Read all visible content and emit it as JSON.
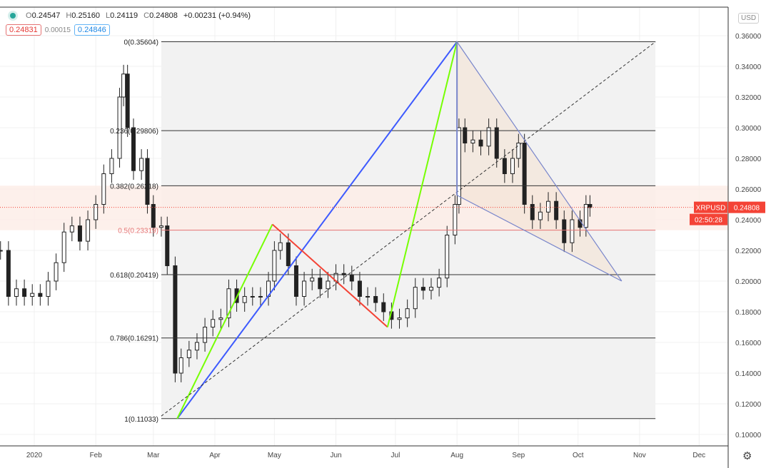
{
  "legend": {
    "open": "0.24547",
    "high": "0.25160",
    "low": "0.24119",
    "close": "0.24808",
    "change": "+0.00231 (+0.94%)",
    "o_label": "O",
    "h_label": "H",
    "l_label": "L",
    "c_label": "C"
  },
  "quote": {
    "sell": "0.24831",
    "spread": "0.00015",
    "buy": "0.24846"
  },
  "currency": "USD",
  "symbol": "XRPUSD",
  "last_price": "0.24808",
  "countdown": "02:50:28",
  "colors": {
    "up": "#ffffff",
    "down": "#222222",
    "fib": "#333333",
    "fib_mid": "#e57373",
    "blue": "#3d5afe",
    "green": "#76ff03",
    "red": "#f44336",
    "triangle": "#7986cb",
    "price_tag": "#f44336"
  },
  "chart_data": {
    "type": "candlestick",
    "y_axis": {
      "min": 0.1,
      "max": 0.36,
      "ticks": [
        "0.10000",
        "0.12000",
        "0.14000",
        "0.16000",
        "0.18000",
        "0.20000",
        "0.22000",
        "0.24000",
        "0.26000",
        "0.28000",
        "0.30000",
        "0.32000",
        "0.34000",
        "0.36000"
      ]
    },
    "x_axis": {
      "ticks": [
        {
          "label": "2020",
          "date": "2020-01-01"
        },
        {
          "label": "Feb",
          "date": "2020-02-01"
        },
        {
          "label": "Mar",
          "date": "2020-03-01"
        },
        {
          "label": "Apr",
          "date": "2020-04-01"
        },
        {
          "label": "May",
          "date": "2020-05-01"
        },
        {
          "label": "Jun",
          "date": "2020-06-01"
        },
        {
          "label": "Jul",
          "date": "2020-07-01"
        },
        {
          "label": "Aug",
          "date": "2020-08-01"
        },
        {
          "label": "Sep",
          "date": "2020-09-01"
        },
        {
          "label": "Oct",
          "date": "2020-10-01"
        },
        {
          "label": "Nov",
          "date": "2020-11-01"
        },
        {
          "label": "Dec",
          "date": "2020-12-01"
        }
      ]
    },
    "closes": [
      [
        "2019-12-15",
        0.22
      ],
      [
        "2019-12-19",
        0.19
      ],
      [
        "2019-12-23",
        0.195
      ],
      [
        "2019-12-27",
        0.19
      ],
      [
        "2019-12-31",
        0.192
      ],
      [
        "2020-01-04",
        0.19
      ],
      [
        "2020-01-08",
        0.2
      ],
      [
        "2020-01-12",
        0.212
      ],
      [
        "2020-01-16",
        0.232
      ],
      [
        "2020-01-20",
        0.236
      ],
      [
        "2020-01-24",
        0.226
      ],
      [
        "2020-01-28",
        0.24
      ],
      [
        "2020-02-01",
        0.25
      ],
      [
        "2020-02-05",
        0.27
      ],
      [
        "2020-02-09",
        0.28
      ],
      [
        "2020-02-13",
        0.32
      ],
      [
        "2020-02-15",
        0.335
      ],
      [
        "2020-02-17",
        0.3
      ],
      [
        "2020-02-20",
        0.272
      ],
      [
        "2020-02-24",
        0.28
      ],
      [
        "2020-02-27",
        0.25
      ],
      [
        "2020-03-01",
        0.235
      ],
      [
        "2020-03-05",
        0.236
      ],
      [
        "2020-03-08",
        0.21
      ],
      [
        "2020-03-12",
        0.14
      ],
      [
        "2020-03-15",
        0.15
      ],
      [
        "2020-03-19",
        0.155
      ],
      [
        "2020-03-23",
        0.16
      ],
      [
        "2020-03-27",
        0.17
      ],
      [
        "2020-03-31",
        0.175
      ],
      [
        "2020-04-04",
        0.176
      ],
      [
        "2020-04-08",
        0.195
      ],
      [
        "2020-04-12",
        0.186
      ],
      [
        "2020-04-16",
        0.19
      ],
      [
        "2020-04-20",
        0.19
      ],
      [
        "2020-04-24",
        0.19
      ],
      [
        "2020-04-28",
        0.2
      ],
      [
        "2020-05-01",
        0.22
      ],
      [
        "2020-05-04",
        0.225
      ],
      [
        "2020-05-08",
        0.21
      ],
      [
        "2020-05-12",
        0.19
      ],
      [
        "2020-05-16",
        0.2
      ],
      [
        "2020-05-20",
        0.202
      ],
      [
        "2020-05-24",
        0.195
      ],
      [
        "2020-05-28",
        0.2
      ],
      [
        "2020-06-01",
        0.205
      ],
      [
        "2020-06-05",
        0.204
      ],
      [
        "2020-06-09",
        0.2
      ],
      [
        "2020-06-13",
        0.19
      ],
      [
        "2020-06-17",
        0.19
      ],
      [
        "2020-06-21",
        0.186
      ],
      [
        "2020-06-25",
        0.18
      ],
      [
        "2020-06-29",
        0.175
      ],
      [
        "2020-07-03",
        0.176
      ],
      [
        "2020-07-07",
        0.182
      ],
      [
        "2020-07-11",
        0.196
      ],
      [
        "2020-07-15",
        0.194
      ],
      [
        "2020-07-19",
        0.196
      ],
      [
        "2020-07-23",
        0.202
      ],
      [
        "2020-07-27",
        0.23
      ],
      [
        "2020-07-31",
        0.25
      ],
      [
        "2020-08-02",
        0.3
      ],
      [
        "2020-08-05",
        0.29
      ],
      [
        "2020-08-09",
        0.292
      ],
      [
        "2020-08-13",
        0.288
      ],
      [
        "2020-08-17",
        0.3
      ],
      [
        "2020-08-21",
        0.28
      ],
      [
        "2020-08-25",
        0.27
      ],
      [
        "2020-08-29",
        0.28
      ],
      [
        "2020-09-01",
        0.29
      ],
      [
        "2020-09-04",
        0.25
      ],
      [
        "2020-09-08",
        0.24
      ],
      [
        "2020-09-12",
        0.245
      ],
      [
        "2020-09-16",
        0.252
      ],
      [
        "2020-09-20",
        0.24
      ],
      [
        "2020-09-24",
        0.225
      ],
      [
        "2020-09-28",
        0.24
      ],
      [
        "2020-10-02",
        0.235
      ],
      [
        "2020-10-05",
        0.25
      ],
      [
        "2020-10-07",
        0.248
      ]
    ],
    "fib_retracement": {
      "start": "2020-03-05",
      "end": "2020-11-09",
      "levels": [
        {
          "label": "0(0.35604)",
          "price": 0.35604
        },
        {
          "label": "0.236(0.29806)",
          "price": 0.29806
        },
        {
          "label": "0.382(0.26218)",
          "price": 0.26218
        },
        {
          "label": "0.5(0.23319)",
          "price": 0.23319
        },
        {
          "label": "0.618(0.20419)",
          "price": 0.20419
        },
        {
          "label": "0.786(0.16291)",
          "price": 0.16291
        },
        {
          "label": "1(0.11033)",
          "price": 0.11033
        }
      ]
    },
    "drawings": [
      {
        "name": "blue-trend-line",
        "color": "blue",
        "points": [
          [
            "2020-03-13",
            0.1103
          ],
          [
            "2020-08-01",
            0.356
          ]
        ]
      },
      {
        "name": "green-leg-1",
        "color": "green",
        "points": [
          [
            "2020-03-13",
            0.1103
          ],
          [
            "2020-04-30",
            0.237
          ]
        ]
      },
      {
        "name": "red-leg",
        "color": "red",
        "points": [
          [
            "2020-04-30",
            0.237
          ],
          [
            "2020-06-27",
            0.17
          ]
        ]
      },
      {
        "name": "green-leg-2",
        "color": "green",
        "points": [
          [
            "2020-06-27",
            0.17
          ],
          [
            "2020-08-01",
            0.356
          ]
        ]
      },
      {
        "name": "dashed-trend-line",
        "color": "fib",
        "dashed": true,
        "points": [
          [
            "2020-03-05",
            0.112
          ],
          [
            "2020-11-09",
            0.356
          ]
        ]
      }
    ],
    "triangle": [
      [
        "2020-08-01",
        0.356
      ],
      [
        "2020-10-23",
        0.2
      ],
      [
        "2020-08-01",
        0.256
      ]
    ],
    "current_price": 0.24808
  }
}
